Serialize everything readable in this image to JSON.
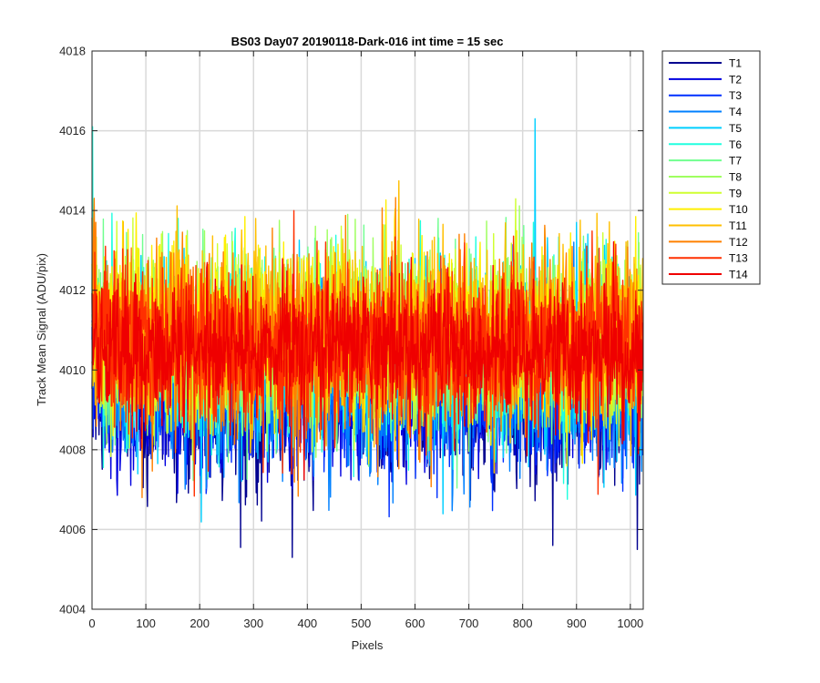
{
  "chart_data": {
    "type": "line",
    "title": "BS03 Day07 20190118-Dark-016 int time = 15 sec",
    "xlabel": "Pixels",
    "ylabel": "Track Mean Signal (ADU/pix)",
    "xlim": [
      0,
      1024
    ],
    "ylim": [
      4004,
      4018
    ],
    "xticks": [
      0,
      100,
      200,
      300,
      400,
      500,
      600,
      700,
      800,
      900,
      1000
    ],
    "yticks": [
      4004,
      4006,
      4008,
      4010,
      4012,
      4014,
      4016,
      4018
    ],
    "grid": true,
    "legend_position": "outside-top-right",
    "n_points": 1024,
    "series": [
      {
        "name": "T1",
        "color": "#00008f",
        "mean": 4009.2,
        "noise_sd": 0.95
      },
      {
        "name": "T2",
        "color": "#0000df",
        "mean": 4009.3,
        "noise_sd": 0.95
      },
      {
        "name": "T3",
        "color": "#0030ff",
        "mean": 4009.4,
        "noise_sd": 0.95
      },
      {
        "name": "T4",
        "color": "#0080ff",
        "mean": 4009.6,
        "noise_sd": 1.0
      },
      {
        "name": "T5",
        "color": "#00cfff",
        "mean": 4010.5,
        "noise_sd": 1.15
      },
      {
        "name": "T6",
        "color": "#20ffdf",
        "mean": 4010.6,
        "noise_sd": 1.1
      },
      {
        "name": "T7",
        "color": "#70ff8f",
        "mean": 4010.7,
        "noise_sd": 1.1
      },
      {
        "name": "T8",
        "color": "#9fff60",
        "mean": 4010.8,
        "noise_sd": 1.1
      },
      {
        "name": "T9",
        "color": "#cfff30",
        "mean": 4010.8,
        "noise_sd": 1.1
      },
      {
        "name": "T10",
        "color": "#ffef00",
        "mean": 4010.9,
        "noise_sd": 1.1
      },
      {
        "name": "T11",
        "color": "#ffbf00",
        "mean": 4010.8,
        "noise_sd": 1.1
      },
      {
        "name": "T12",
        "color": "#ff8000",
        "mean": 4010.7,
        "noise_sd": 1.1
      },
      {
        "name": "T13",
        "color": "#ff3000",
        "mean": 4010.6,
        "noise_sd": 1.05
      },
      {
        "name": "T14",
        "color": "#ef0000",
        "mean": 4010.5,
        "noise_sd": 0.85
      }
    ],
    "notable_points": [
      {
        "series": "T5",
        "x": 823,
        "y": 4016.3
      },
      {
        "series": "T6",
        "x": 1,
        "y": 4016.1
      },
      {
        "series": "T1",
        "x": 372,
        "y": 4005.3
      },
      {
        "series": "T1",
        "x": 1013,
        "y": 4005.5
      },
      {
        "series": "T1",
        "x": 276,
        "y": 4005.55
      },
      {
        "series": "T1",
        "x": 856,
        "y": 4005.6
      },
      {
        "series": "T12",
        "x": 93,
        "y": 4006.8
      }
    ]
  }
}
